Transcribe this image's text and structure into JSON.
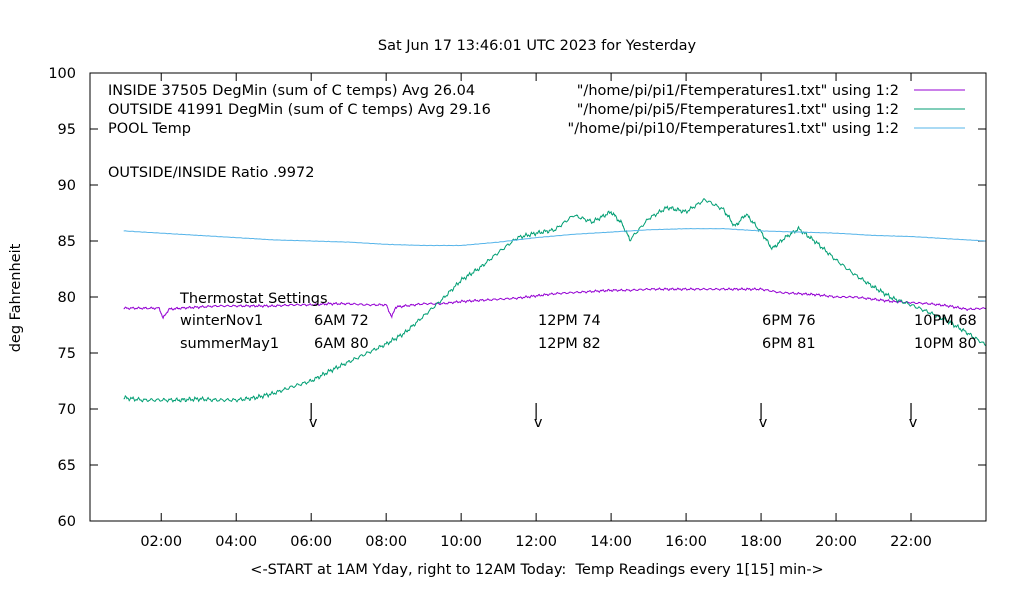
{
  "chart_data": {
    "type": "line",
    "title": "Sat Jun 17 13:46:01 UTC 2023 for Yesterday",
    "xlabel": "<-START at 1AM Yday, right to 12AM Today:  Temp Readings every 1[15] min->",
    "ylabel": "deg Fahrenheit",
    "xlim": [
      0.1,
      24
    ],
    "ylim": [
      60,
      100
    ],
    "yticks": [
      60,
      65,
      70,
      75,
      80,
      85,
      90,
      95,
      100
    ],
    "xticks": [
      {
        "x": 2,
        "label": "02:00"
      },
      {
        "x": 4,
        "label": "04:00"
      },
      {
        "x": 6,
        "label": "06:00"
      },
      {
        "x": 8,
        "label": "08:00"
      },
      {
        "x": 10,
        "label": "10:00"
      },
      {
        "x": 12,
        "label": "12:00"
      },
      {
        "x": 14,
        "label": "14:00"
      },
      {
        "x": 16,
        "label": "16:00"
      },
      {
        "x": 18,
        "label": "18:00"
      },
      {
        "x": 20,
        "label": "20:00"
      },
      {
        "x": 22,
        "label": "22:00"
      }
    ],
    "grid": false,
    "legend_position": "top",
    "series": [
      {
        "name": "INSIDE 37505 DegMin (sum of C temps) Avg 26.04",
        "file": "\"/home/pi/pi1/Ftemperatures1.txt\" using 1:2",
        "color": "#9400d3",
        "x": [
          1.0,
          1.5,
          1.95,
          2.05,
          2.2,
          2.5,
          3.0,
          3.5,
          4.0,
          4.5,
          5.0,
          5.5,
          6.0,
          6.5,
          7.0,
          7.5,
          8.0,
          8.15,
          8.25,
          8.5,
          9.0,
          9.5,
          10.0,
          10.5,
          11.0,
          11.5,
          12.0,
          12.5,
          13.0,
          13.5,
          14.0,
          14.5,
          15.0,
          15.5,
          16.0,
          16.5,
          17.0,
          17.5,
          18.0,
          18.5,
          19.0,
          19.5,
          20.0,
          20.5,
          21.0,
          21.5,
          22.0,
          22.5,
          23.0,
          23.5,
          24.0
        ],
        "values": [
          79.0,
          79.0,
          79.0,
          78.1,
          78.9,
          79.0,
          79.1,
          79.2,
          79.2,
          79.2,
          79.2,
          79.3,
          79.3,
          79.4,
          79.4,
          79.3,
          79.3,
          78.2,
          79.1,
          79.2,
          79.4,
          79.4,
          79.6,
          79.7,
          79.8,
          79.9,
          80.1,
          80.3,
          80.4,
          80.5,
          80.6,
          80.6,
          80.7,
          80.7,
          80.7,
          80.7,
          80.7,
          80.7,
          80.7,
          80.4,
          80.3,
          80.2,
          80.0,
          80.0,
          79.8,
          79.6,
          79.5,
          79.4,
          79.2,
          78.9,
          79.0
        ]
      },
      {
        "name": "OUTSIDE 41991 DegMin (sum of C temps) Avg 29.16",
        "file": "\"/home/pi/pi5/Ftemperatures1.txt\" using 1:2",
        "color": "#009e73",
        "x": [
          1.0,
          1.5,
          2.0,
          2.5,
          3.0,
          3.5,
          4.0,
          4.5,
          5.0,
          5.5,
          6.0,
          6.5,
          7.0,
          7.5,
          8.0,
          8.5,
          9.0,
          9.5,
          10.0,
          10.5,
          11.0,
          11.5,
          12.0,
          12.5,
          13.0,
          13.5,
          14.0,
          14.3,
          14.5,
          15.0,
          15.5,
          16.0,
          16.5,
          17.0,
          17.3,
          17.6,
          18.0,
          18.3,
          18.6,
          19.0,
          19.5,
          20.0,
          20.5,
          21.0,
          21.5,
          22.0,
          22.5,
          23.0,
          23.5,
          24.0
        ],
        "values": [
          71.0,
          70.8,
          70.8,
          70.8,
          70.9,
          70.8,
          70.8,
          71.0,
          71.4,
          72.0,
          72.5,
          73.4,
          74.2,
          75.0,
          75.8,
          76.8,
          78.3,
          79.8,
          81.5,
          82.6,
          84.0,
          85.3,
          85.7,
          86.0,
          87.3,
          86.7,
          87.6,
          86.5,
          85.1,
          87.0,
          88.0,
          87.6,
          88.7,
          87.8,
          86.3,
          87.4,
          85.8,
          84.3,
          85.2,
          86.1,
          84.8,
          83.3,
          82.0,
          80.9,
          79.9,
          79.3,
          78.6,
          77.8,
          76.8,
          75.7
        ]
      },
      {
        "name": "POOL Temp",
        "file": "\"/home/pi/pi10/Ftemperatures1.txt\" using 1:2",
        "color": "#56b4e9",
        "x": [
          1.0,
          2.0,
          3.0,
          4.0,
          5.0,
          6.0,
          7.0,
          8.0,
          9.0,
          10.0,
          11.0,
          12.0,
          13.0,
          14.0,
          15.0,
          16.0,
          17.0,
          18.0,
          19.0,
          20.0,
          21.0,
          22.0,
          23.0,
          24.0
        ],
        "values": [
          85.9,
          85.7,
          85.5,
          85.3,
          85.1,
          85.0,
          84.9,
          84.7,
          84.6,
          84.6,
          84.9,
          85.3,
          85.6,
          85.8,
          86.0,
          86.1,
          86.1,
          85.9,
          85.8,
          85.7,
          85.5,
          85.4,
          85.2,
          85.0
        ]
      }
    ],
    "annotations": {
      "ratio": "OUTSIDE/INSIDE Ratio .9972",
      "thermostat_title": "Thermostat Settings",
      "rows": [
        {
          "label": "winterNov1",
          "cells": [
            "6AM 72",
            "12PM 74",
            "6PM 76",
            "10PM 68"
          ]
        },
        {
          "label": "summerMay1",
          "cells": [
            "6AM 80",
            "12PM 82",
            "6PM 81",
            "10PM 80"
          ]
        }
      ],
      "arrow_times": [
        6,
        12,
        18,
        22
      ],
      "arrow_glyph": "v"
    }
  }
}
